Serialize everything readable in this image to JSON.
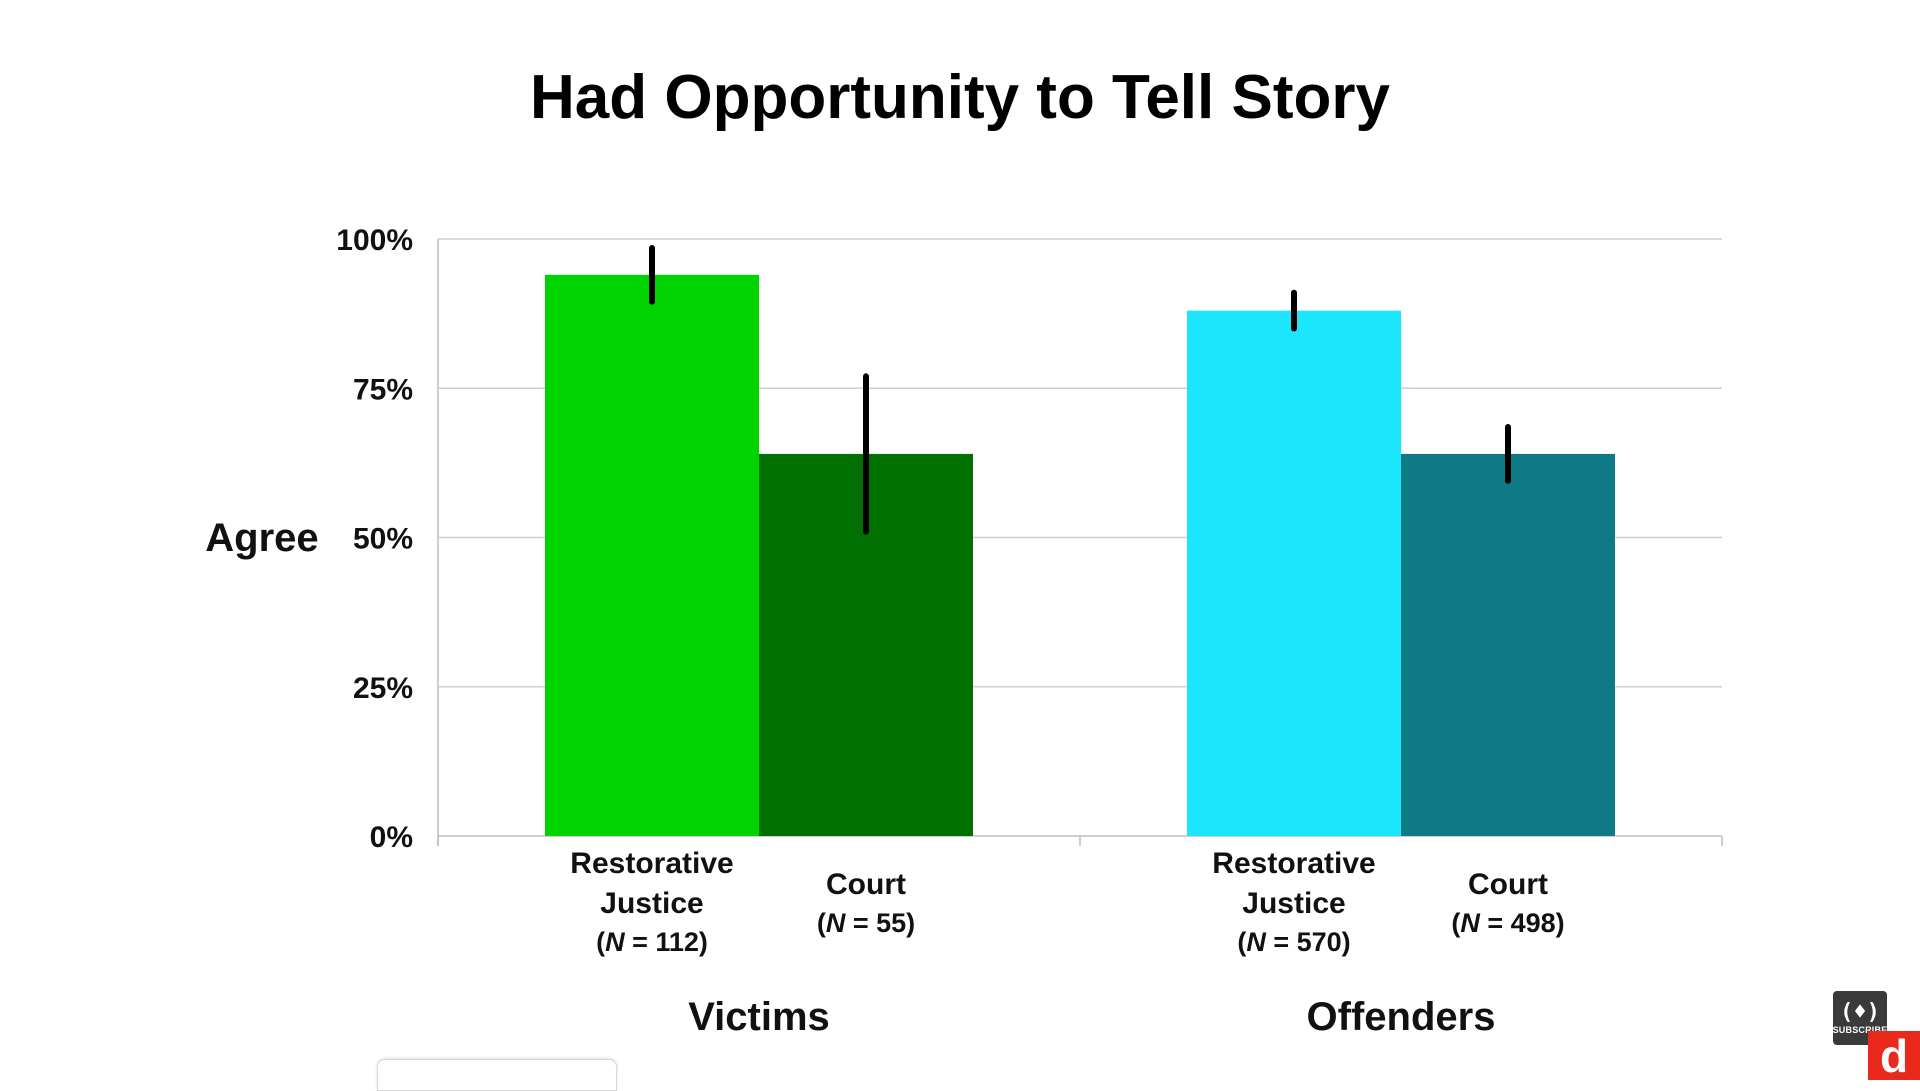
{
  "chart_data": {
    "type": "bar",
    "title": "Had Opportunity to Tell Story",
    "ylabel": "Agree",
    "xlabel": "",
    "ylim": [
      0,
      100
    ],
    "yticks": [
      "0%",
      "25%",
      "50%",
      "75%",
      "100%"
    ],
    "grid": true,
    "groups": [
      {
        "name": "Victims",
        "bars": [
          {
            "label_lines": [
              "Restorative",
              "Justice"
            ],
            "n_prefix": "(",
            "n_italic": "N",
            "n_suffix": " = 112)",
            "value": 94,
            "err_low": 89.5,
            "err_high": 98.5,
            "color": "#00d400"
          },
          {
            "label_lines": [
              "Court"
            ],
            "n_prefix": "(",
            "n_italic": "N",
            "n_suffix": " = 55)",
            "value": 64,
            "err_low": 51,
            "err_high": 77,
            "color": "#007000"
          }
        ]
      },
      {
        "name": "Offenders",
        "bars": [
          {
            "label_lines": [
              "Restorative",
              "Justice"
            ],
            "n_prefix": "(",
            "n_italic": "N",
            "n_suffix": " = 570)",
            "value": 88,
            "err_low": 85,
            "err_high": 91,
            "color": "#1be6fc"
          },
          {
            "label_lines": [
              "Court"
            ],
            "n_prefix": "(",
            "n_italic": "N",
            "n_suffix": " = 498)",
            "value": 64,
            "err_low": 59.5,
            "err_high": 68.5,
            "color": "#0e7a86"
          }
        ]
      }
    ]
  },
  "overlay": {
    "badge_glyph": "(♦)",
    "badge_text": "SUBSCRIBE",
    "logo_letter": "d"
  }
}
